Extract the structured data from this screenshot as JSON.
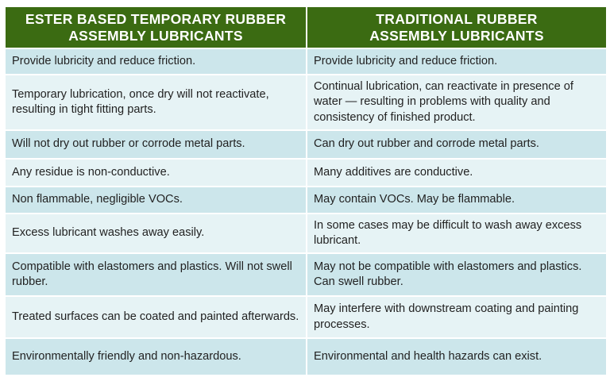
{
  "headers": [
    "ESTER BASED TEMPORARY RUBBER ASSEMBLY LUBRICANTS",
    "TRADITIONAL RUBBER ASSEMBLY LUBRICANTS"
  ],
  "colors": {
    "header_bg": "#3b6b12",
    "row_odd": "#cce6eb",
    "row_even": "#e6f3f5"
  },
  "rows": [
    [
      "Provide lubricity and reduce friction.",
      "Provide lubricity and reduce friction."
    ],
    [
      "Temporary lubrication, once dry will not reactivate, resulting in tight fitting parts.",
      "Continual lubrication, can reactivate in presence of water — resulting in problems with quality and consistency of finished product."
    ],
    [
      "Will not dry out rubber or corrode metal parts.",
      "Can dry out rubber and corrode metal parts."
    ],
    [
      "Any residue is non-conductive.",
      "Many additives are conductive."
    ],
    [
      "Non flammable, negligible VOCs.",
      "May contain VOCs.  May be flammable."
    ],
    [
      "Excess lubricant washes away easily.",
      "In some cases may be difficult to wash away excess lubricant."
    ],
    [
      "Compatible with elastomers and plastics. Will not swell rubber.",
      "May not be compatible with elastomers and plastics.  Can swell rubber."
    ],
    [
      "Treated surfaces can be coated and painted afterwards.",
      "May interfere with downstream coating and painting processes."
    ],
    [
      "Environmentally friendly and non-hazardous.",
      "Environmental and health hazards can exist."
    ]
  ]
}
